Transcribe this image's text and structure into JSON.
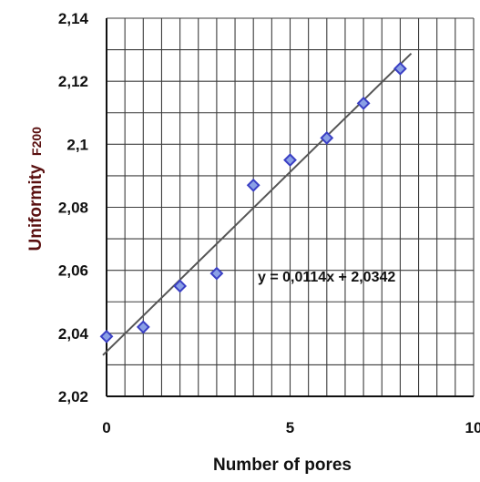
{
  "chart_data": {
    "type": "scatter",
    "xlabel": "Number of pores",
    "ylabel": "Uniformity",
    "ylabel_subscript": "F200",
    "xlim": [
      0,
      10
    ],
    "ylim": [
      2.02,
      2.14
    ],
    "x_ticks": [
      "0",
      "5",
      "10"
    ],
    "y_ticks": [
      "2,02",
      "2,04",
      "2,06",
      "2,08",
      "2,1",
      "2,12",
      "2,14"
    ],
    "grid": true,
    "series": [
      {
        "x": [
          0,
          1,
          2,
          3,
          4,
          5,
          6,
          7,
          8
        ],
        "y": [
          2.039,
          2.042,
          2.055,
          2.059,
          2.087,
          2.095,
          2.102,
          2.113,
          2.124
        ],
        "marker": "diamond",
        "color": "#3a3fc4"
      }
    ],
    "trendline": {
      "slope": 0.0114,
      "intercept": 2.0342,
      "equation": "y = 0,0114x + 2,0342",
      "color": "#555555"
    }
  }
}
